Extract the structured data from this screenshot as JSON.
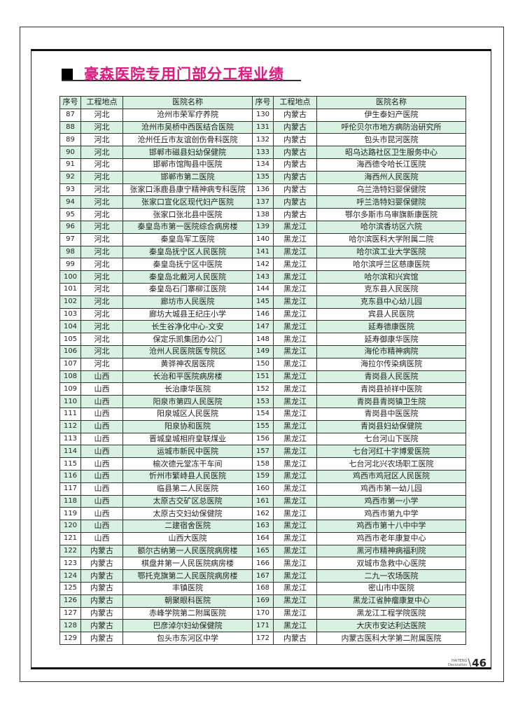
{
  "title": "豪森医院专用门部分工程业绩",
  "colors": {
    "title": "#e0197f",
    "row_highlight": "#d8f1e1"
  },
  "table": {
    "headers": [
      "序号",
      "工程地点",
      "医院名称",
      "序号",
      "工程地点",
      "医院名称"
    ],
    "left": [
      [
        "87",
        "河北",
        "沧州市荣军疗养院"
      ],
      [
        "88",
        "河北",
        "沧州市吴桥中西医结合医院"
      ],
      [
        "89",
        "河北",
        "沧州任丘市友谊创伤骨科医院"
      ],
      [
        "90",
        "河北",
        "邯郸市磁县妇幼保健院"
      ],
      [
        "91",
        "河北",
        "邯郸市馆陶县中医院"
      ],
      [
        "92",
        "河北",
        "邯郸市第二医院"
      ],
      [
        "93",
        "河北",
        "张家口涿鹿县康宁精神病专科医院"
      ],
      [
        "94",
        "河北",
        "张家口宣化区现代妇产医院"
      ],
      [
        "95",
        "河北",
        "张家口张北县中医院"
      ],
      [
        "96",
        "河北",
        "秦皇岛市第一医院综合病房楼"
      ],
      [
        "97",
        "河北",
        "秦皇岛军工医院"
      ],
      [
        "98",
        "河北",
        "秦皇岛抚宁区人民医院"
      ],
      [
        "99",
        "河北",
        "秦皇岛抚宁区中医院"
      ],
      [
        "100",
        "河北",
        "秦皇岛北戴河人民医院"
      ],
      [
        "101",
        "河北",
        "秦皇岛石门寨柳江医院"
      ],
      [
        "102",
        "河北",
        "廊坊市人民医院"
      ],
      [
        "103",
        "河北",
        "廊坊大城县王纪庄小学"
      ],
      [
        "104",
        "河北",
        "长生谷净化中心-文安"
      ],
      [
        "105",
        "河北",
        "保定乐凯集团办公门"
      ],
      [
        "106",
        "河北",
        "沧州人民医院医专院区"
      ],
      [
        "107",
        "河北",
        "黄骅神农居医院"
      ],
      [
        "108",
        "山西",
        "长治和平医院病房楼"
      ],
      [
        "109",
        "山西",
        "长治康华医院"
      ],
      [
        "110",
        "山西",
        "阳泉市第四人民医院"
      ],
      [
        "111",
        "山西",
        "阳泉城区人民医院"
      ],
      [
        "112",
        "山西",
        "阳泉协和医院"
      ],
      [
        "113",
        "山西",
        "晋城皇城相府皇联煤业"
      ],
      [
        "114",
        "山西",
        "运城市新民中医院"
      ],
      [
        "115",
        "山西",
        "榆次德元堂冻干车间"
      ],
      [
        "116",
        "山西",
        "忻州市繁峙县人民医院"
      ],
      [
        "117",
        "山西",
        "临县第二人民医院"
      ],
      [
        "118",
        "山西",
        "太原古交矿区总医院"
      ],
      [
        "119",
        "山西",
        "太原古交妇幼保健院"
      ],
      [
        "120",
        "山西",
        "二建宿舍医院"
      ],
      [
        "121",
        "山西",
        "山西大医院"
      ],
      [
        "122",
        "内蒙古",
        "额尔古纳第一人民医院病房楼"
      ],
      [
        "123",
        "内蒙古",
        "棋盘井第一人民医院病房楼"
      ],
      [
        "124",
        "内蒙古",
        "鄂托克旗第二人民医院病房楼"
      ],
      [
        "125",
        "内蒙古",
        "丰镇医院"
      ],
      [
        "126",
        "内蒙古",
        "朝聚眼科医院"
      ],
      [
        "127",
        "内蒙古",
        "赤峰学院第二附属医院"
      ],
      [
        "128",
        "内蒙古",
        "巴彦淖尔妇幼保健院"
      ],
      [
        "129",
        "内蒙古",
        "包头市东河区中学"
      ]
    ],
    "right": [
      [
        "130",
        "内蒙古",
        "伊生泰妇产医院"
      ],
      [
        "131",
        "内蒙古",
        "呼伦贝尔市地方病防治研究所"
      ],
      [
        "132",
        "内蒙古",
        "包头市昆河医院"
      ],
      [
        "133",
        "内蒙古",
        "昭乌达路社区卫生服务中心"
      ],
      [
        "134",
        "内蒙古",
        "海西德令哈长江医院"
      ],
      [
        "135",
        "内蒙古",
        "海西州人民医院"
      ],
      [
        "136",
        "内蒙古",
        "乌兰浩特妇婴保健院"
      ],
      [
        "137",
        "内蒙古",
        "呼兰浩特妇婴保健院"
      ],
      [
        "138",
        "内蒙古",
        "鄂尔多斯市乌审旗新康医院"
      ],
      [
        "139",
        "黑龙江",
        "哈尔滨香坊区六院"
      ],
      [
        "140",
        "黑龙江",
        "哈尔滨医科大学附属二院"
      ],
      [
        "141",
        "黑龙江",
        "哈尔滨工业大学医院"
      ],
      [
        "142",
        "黑龙江",
        "哈尔滨呼兰区慈康医院"
      ],
      [
        "143",
        "黑龙江",
        "哈尔滨和兴宾馆"
      ],
      [
        "144",
        "黑龙江",
        "克东县人民医院"
      ],
      [
        "145",
        "黑龙江",
        "克东县中心幼儿园"
      ],
      [
        "146",
        "黑龙江",
        "宾县人民医院"
      ],
      [
        "147",
        "黑龙江",
        "延寿德康医院"
      ],
      [
        "148",
        "黑龙江",
        "延寿御康华医院"
      ],
      [
        "149",
        "黑龙江",
        "海伦市精神病院"
      ],
      [
        "150",
        "黑龙江",
        "海拉尔传染病医院"
      ],
      [
        "151",
        "黑龙江",
        "青岗县人民医院"
      ],
      [
        "152",
        "黑龙江",
        "青岗县祯祥中医院"
      ],
      [
        "153",
        "黑龙江",
        "青岗县青岗镇卫生院"
      ],
      [
        "154",
        "黑龙江",
        "青岗县中医医院"
      ],
      [
        "155",
        "黑龙江",
        "青岗县妇幼保健院"
      ],
      [
        "156",
        "黑龙江",
        "七台河山下医院"
      ],
      [
        "157",
        "黑龙江",
        "七台河红十字博爱医院"
      ],
      [
        "158",
        "黑龙江",
        "七台河北兴农场职工医院"
      ],
      [
        "159",
        "黑龙江",
        "鸡西市鸡冠区人民医院"
      ],
      [
        "160",
        "黑龙江",
        "鸡西市第一幼儿园"
      ],
      [
        "161",
        "黑龙江",
        "鸡西市第一小学"
      ],
      [
        "162",
        "黑龙江",
        "鸡西市第九中学"
      ],
      [
        "163",
        "黑龙江",
        "鸡西市第十八中中学"
      ],
      [
        "164",
        "黑龙江",
        "鸡西市老年康复中心"
      ],
      [
        "165",
        "黑龙江",
        "黑河市精神病福利院"
      ],
      [
        "166",
        "黑龙江",
        "双城市急救中心医院"
      ],
      [
        "167",
        "黑龙江",
        "二九一农场医院"
      ],
      [
        "168",
        "黑龙江",
        "密山市中医院"
      ],
      [
        "169",
        "黑龙江",
        "黑龙江省肿瘤康复中心"
      ],
      [
        "170",
        "黑龙江",
        "黑龙江工程学院医院"
      ],
      [
        "171",
        "黑龙江",
        "大庆市安达利达医院"
      ],
      [
        "172",
        "内蒙古",
        "内蒙古医科大学第二附属医院"
      ]
    ]
  },
  "footer": {
    "brand_line1": "HAITENG",
    "brand_line2": "Decoration",
    "page": "46"
  }
}
